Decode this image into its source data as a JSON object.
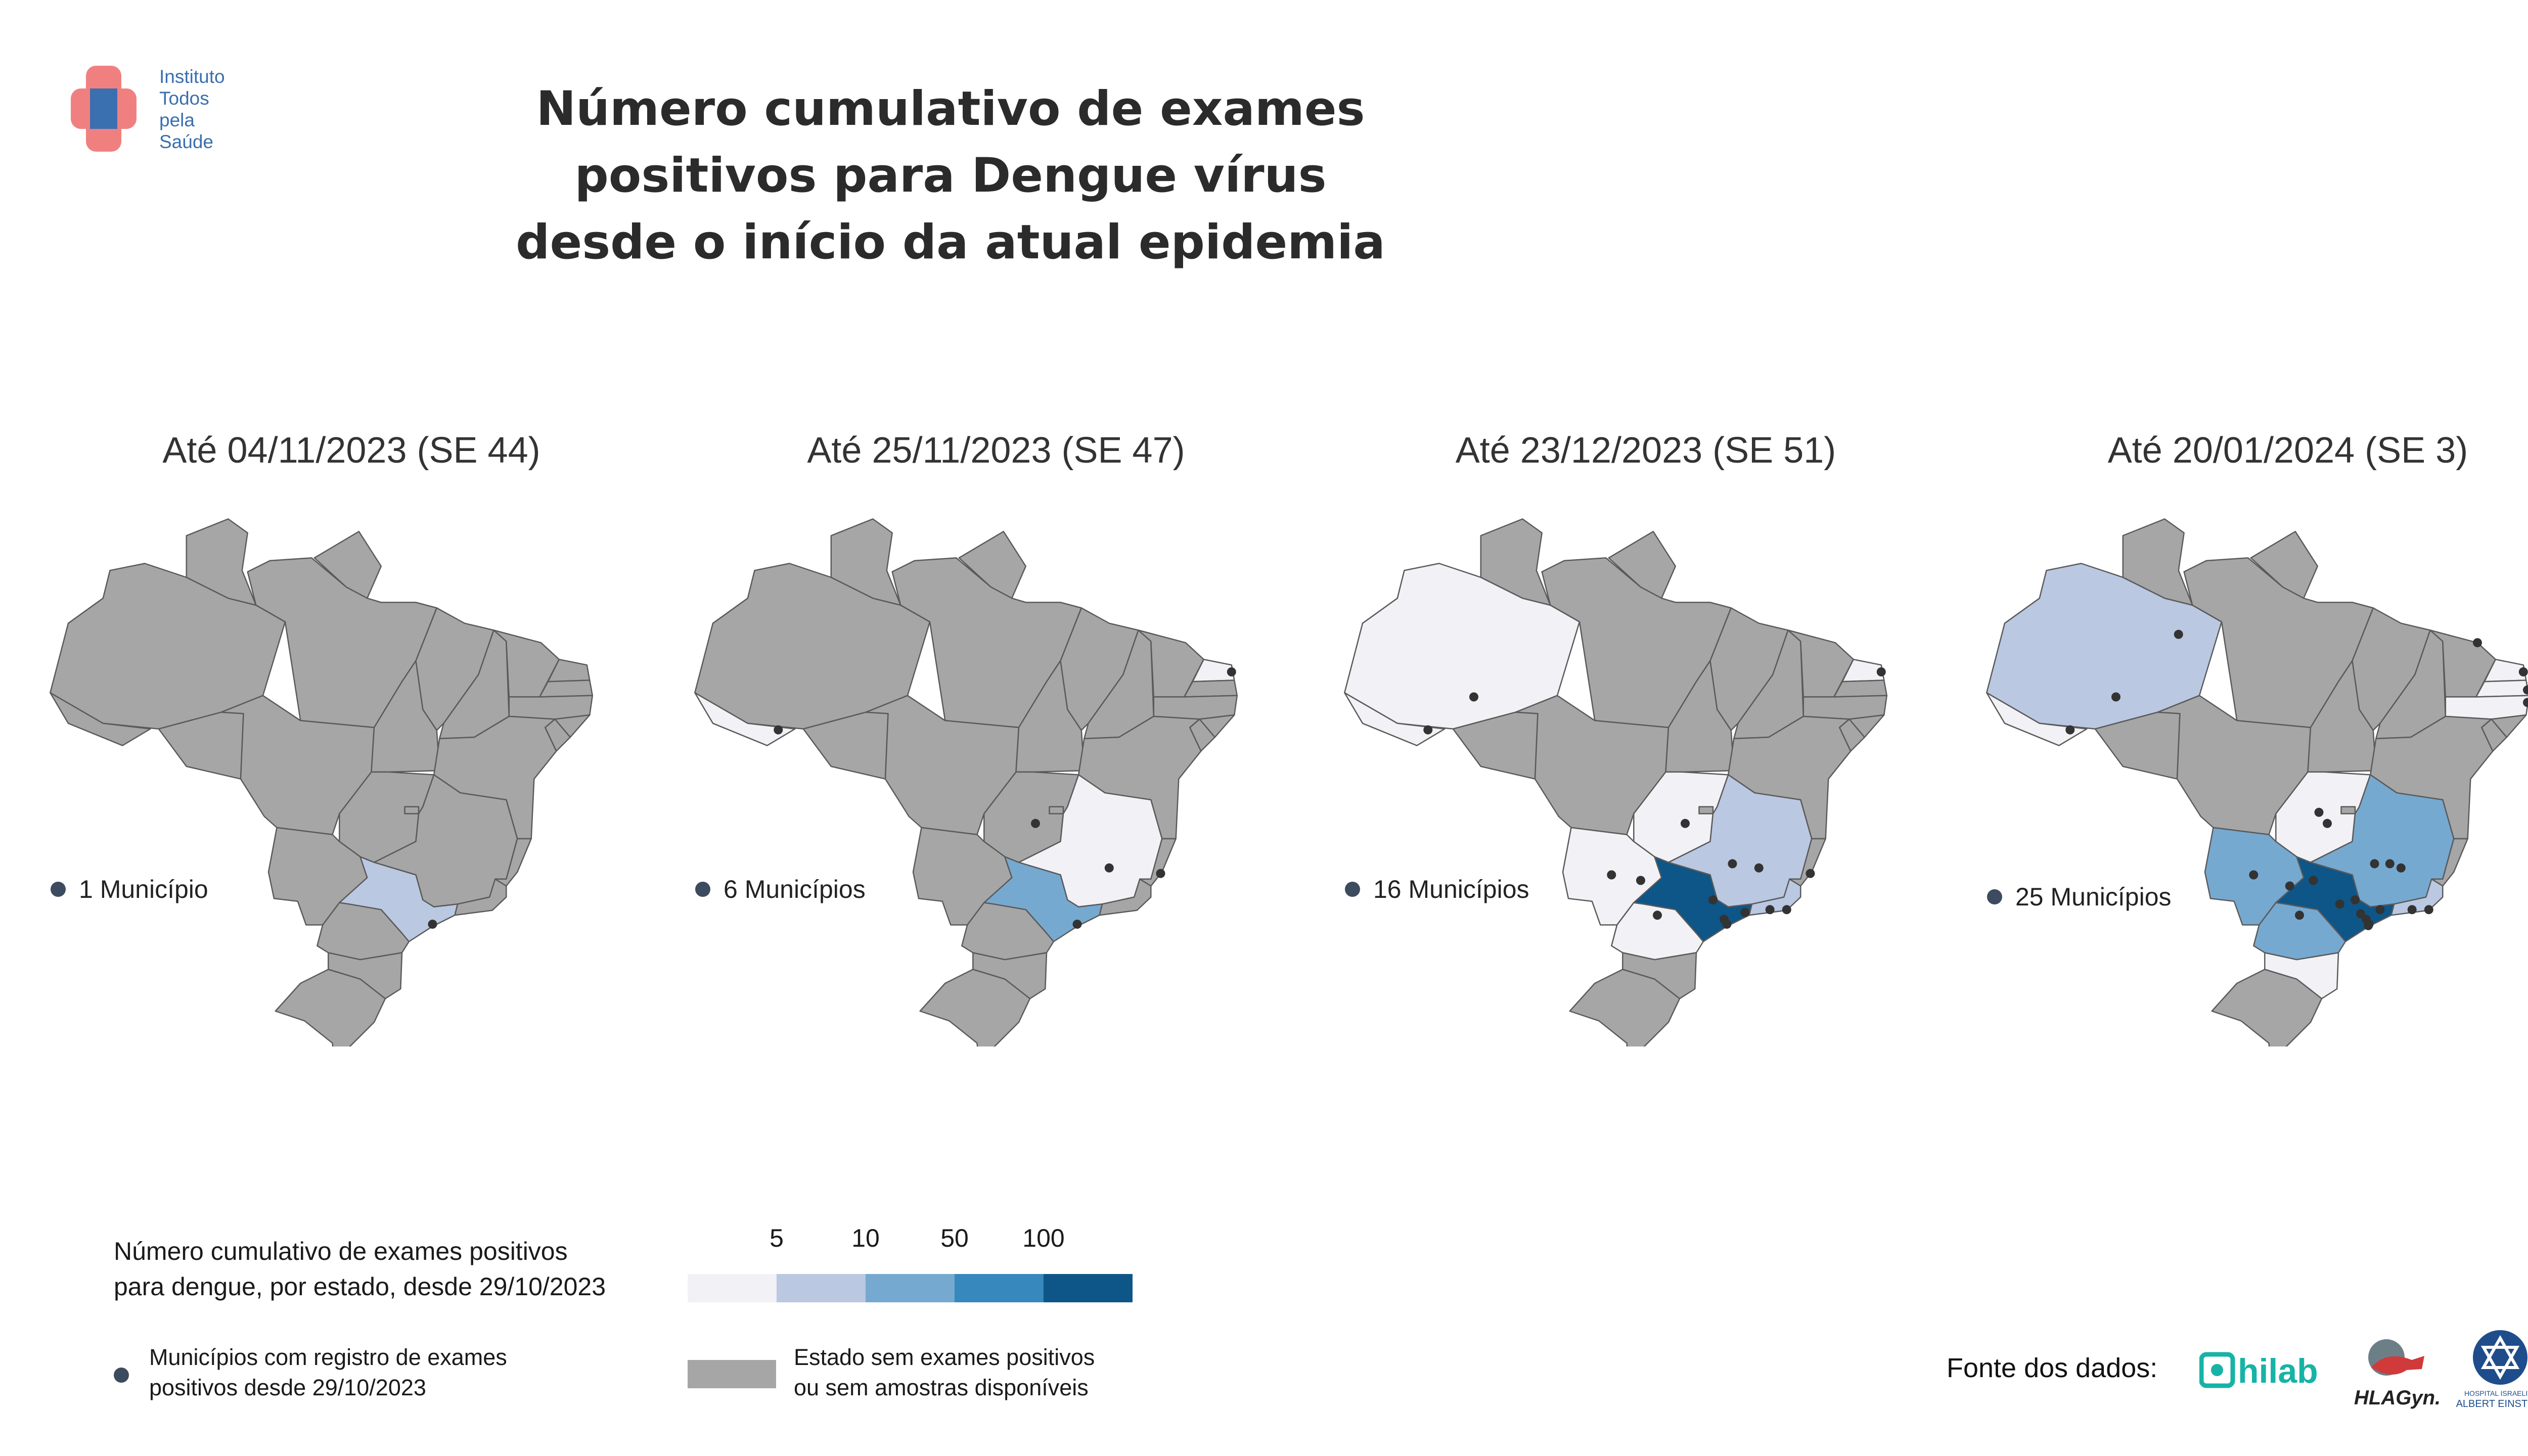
{
  "header": {
    "logo_text": [
      "Instituto",
      "Todos",
      "pela",
      "Saúde"
    ],
    "title_line1": "Número cumulativo de exames positivos para Dengue vírus",
    "title_line2": "desde o início da atual epidemia"
  },
  "colors": {
    "no_data": "#a6a6a6",
    "scale": [
      "#f1f1f6",
      "#bac8e2",
      "#76a9d0",
      "#3688bd",
      "#0d5687"
    ],
    "border": "#5a5a5a",
    "municipality_dot": "#333333"
  },
  "panels": [
    {
      "title": "Até 04/11/2023 (SE 44)",
      "municipios_label": "1 Município",
      "state_colors": {
        "SP": 1
      },
      "dots": [
        [
          -46.3,
          -23.95
        ]
      ]
    },
    {
      "title": "Até 25/11/2023 (SE 47)",
      "municipios_label": "6 Municípios",
      "state_colors": {
        "AC": 0,
        "RN": 0,
        "MG": 0,
        "SP": 2
      },
      "dots": [
        [
          -67.8,
          -9.97
        ],
        [
          -35.2,
          -5.8
        ],
        [
          -49.3,
          -16.7
        ],
        [
          -44.0,
          -19.9
        ],
        [
          -40.3,
          -20.3
        ],
        [
          -46.3,
          -23.95
        ]
      ]
    },
    {
      "title": "Até 23/12/2023 (SE 51)",
      "municipios_label": "16 Municípios",
      "state_colors": {
        "AM": 0,
        "AC": 0,
        "RN": 0,
        "GO": 0,
        "MS": 0,
        "PR": 0,
        "MG": 1,
        "RJ": 1,
        "SP": 4
      },
      "dots": [
        [
          -67.8,
          -9.97
        ],
        [
          -64.5,
          -7.6
        ],
        [
          -35.2,
          -5.8
        ],
        [
          -49.3,
          -16.7
        ],
        [
          -54.6,
          -20.4
        ],
        [
          -52.5,
          -20.8
        ],
        [
          -51.3,
          -23.3
        ],
        [
          -45.9,
          -19.6
        ],
        [
          -44.0,
          -19.9
        ],
        [
          -47.3,
          -22.2
        ],
        [
          -46.5,
          -23.6
        ],
        [
          -45.0,
          -23.1
        ],
        [
          -43.2,
          -22.9
        ],
        [
          -42.0,
          -22.9
        ],
        [
          -40.3,
          -20.3
        ],
        [
          -46.3,
          -23.95
        ]
      ]
    },
    {
      "title": "Até 20/01/2024 (SE 3)",
      "municipios_label": "25 Municípios",
      "state_colors": {
        "AM": 1,
        "AC": 0,
        "RN": 0,
        "PB": 0,
        "PE": 0,
        "GO": 0,
        "MS": 2,
        "PR": 2,
        "MG": 2,
        "RJ": 1,
        "SP": 4,
        "SC": 0
      },
      "dots": [
        [
          -67.8,
          -9.97
        ],
        [
          -64.5,
          -7.6
        ],
        [
          -60.0,
          -3.1
        ],
        [
          -38.5,
          -3.7
        ],
        [
          -35.2,
          -5.8
        ],
        [
          -34.9,
          -7.1
        ],
        [
          -34.9,
          -8.0
        ],
        [
          -49.3,
          -16.7
        ],
        [
          -49.9,
          -15.9
        ],
        [
          -54.6,
          -20.4
        ],
        [
          -52.0,
          -21.2
        ],
        [
          -50.3,
          -20.8
        ],
        [
          -51.3,
          -23.3
        ],
        [
          -45.9,
          -19.6
        ],
        [
          -44.8,
          -19.6
        ],
        [
          -44.0,
          -19.9
        ],
        [
          -47.3,
          -22.2
        ],
        [
          -48.4,
          -22.5
        ],
        [
          -46.9,
          -23.2
        ],
        [
          -46.5,
          -23.6
        ],
        [
          -45.5,
          -22.9
        ],
        [
          -43.2,
          -22.9
        ],
        [
          -42.0,
          -22.9
        ],
        [
          -46.3,
          -23.95
        ],
        [
          -46.35,
          -24.05
        ]
      ]
    }
  ],
  "legend": {
    "title_line1": "Número cumulativo de exames positivos",
    "title_line2": "para dengue, por estado, desde 29/10/2023",
    "ticks": [
      "5",
      "10",
      "50",
      "100"
    ],
    "municipios_line1": "Municípios com registro de exames",
    "municipios_line2": "positivos desde 29/10/2023",
    "gray_line1": "Estado sem exames positivos",
    "gray_line2": "ou sem amostras disponíveis"
  },
  "footer": {
    "source_label": "Fonte dos dados:",
    "logo1": "hilab",
    "logo2": "HLAGyn.",
    "logo3_line1": "HOSPITAL ISRAELITA",
    "logo3_line2": "ALBERT EINSTEIN"
  }
}
